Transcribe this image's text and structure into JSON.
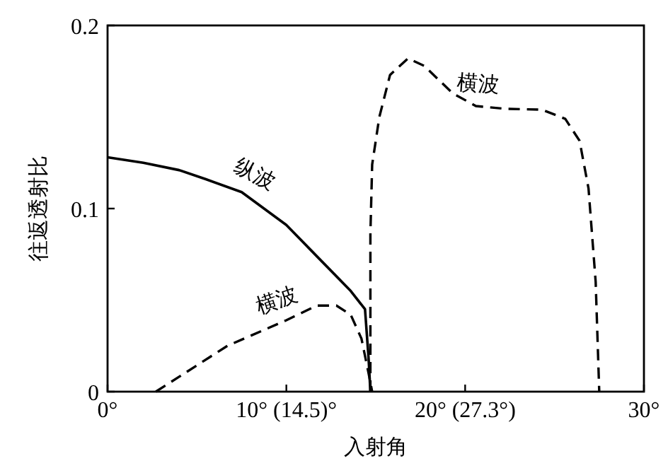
{
  "chart_data": {
    "type": "line",
    "xlabel": "入射角",
    "ylabel": "往返透射比",
    "xlim": [
      0,
      30
    ],
    "ylim": [
      0,
      0.2
    ],
    "xticks": [
      {
        "value": 0,
        "label": "0°"
      },
      {
        "value": 10,
        "label": "10° (14.5)°"
      },
      {
        "value": 20,
        "label": "20° (27.3°)"
      },
      {
        "value": 30,
        "label": "30°"
      }
    ],
    "yticks": [
      0,
      0.1,
      0.2
    ],
    "grid": false,
    "legend": false,
    "series": [
      {
        "name": "纵波",
        "color": "#000000",
        "line_style": "solid",
        "x": [
          0,
          2,
          4,
          5.5,
          7.5,
          10,
          12,
          13.6,
          14.4,
          14.6,
          14.7
        ],
        "values": [
          0.128,
          0.125,
          0.121,
          0.116,
          0.109,
          0.091,
          0.071,
          0.055,
          0.045,
          0.018,
          0
        ]
      },
      {
        "name": "横波",
        "color": "#000000",
        "line_style": "dashed",
        "x": [
          2.7,
          6.7,
          10,
          11.7,
          12.8,
          13.6,
          14.2,
          14.6,
          14.8
        ],
        "values": [
          0,
          0.025,
          0.039,
          0.047,
          0.047,
          0.042,
          0.029,
          0.01,
          0
        ]
      },
      {
        "name": "横波",
        "color": "#000000",
        "line_style": "dashed",
        "x": [
          14.7,
          14.7,
          14.8,
          15.2,
          15.8,
          16.8,
          17.7,
          19.3,
          20.6,
          22.2,
          24.3,
          25.6,
          26.4,
          26.9,
          27.3,
          27.5
        ],
        "values": [
          0,
          0.086,
          0.124,
          0.15,
          0.173,
          0.182,
          0.178,
          0.163,
          0.156,
          0.1545,
          0.154,
          0.149,
          0.137,
          0.111,
          0.06,
          0
        ]
      }
    ]
  }
}
